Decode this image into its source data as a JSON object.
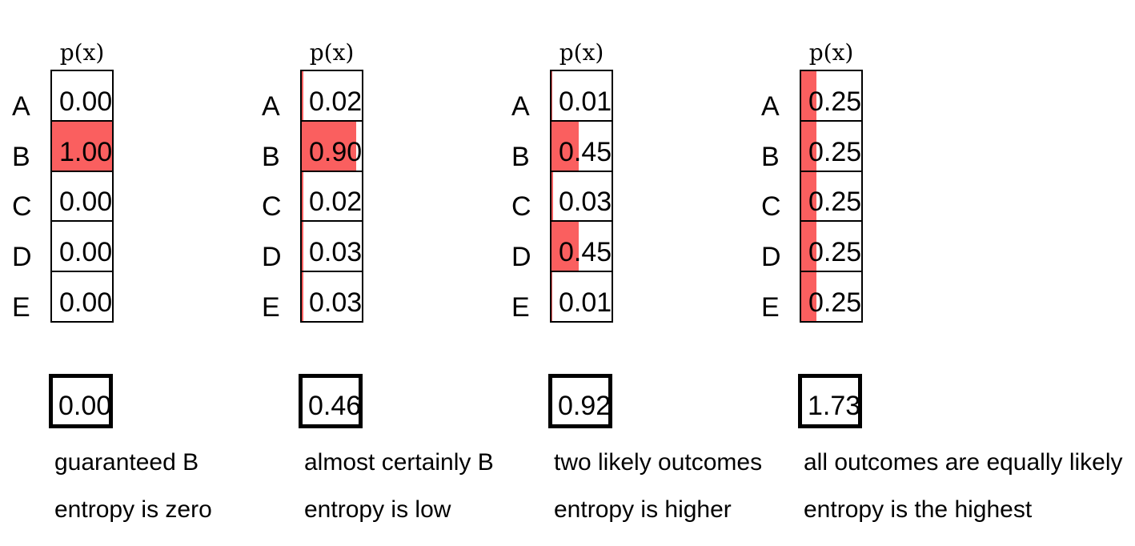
{
  "figure": {
    "header_label": "p(x)",
    "categories": [
      "A",
      "B",
      "C",
      "D",
      "E"
    ],
    "bar_color": "#fa5f5f",
    "border_color": "#000000",
    "distributions": [
      {
        "probs": [
          0.0,
          1.0,
          0.0,
          0.0,
          0.0
        ],
        "prob_labels": [
          "0.00",
          "1.00",
          "0.00",
          "0.00",
          "0.00"
        ],
        "entropy": "0.00",
        "caption_line1": "guaranteed B",
        "caption_line2": "entropy is zero"
      },
      {
        "probs": [
          0.02,
          0.9,
          0.02,
          0.03,
          0.03
        ],
        "prob_labels": [
          "0.02",
          "0.90",
          "0.02",
          "0.03",
          "0.03"
        ],
        "entropy": "0.46",
        "caption_line1": "almost certainly B",
        "caption_line2": "entropy is low"
      },
      {
        "probs": [
          0.01,
          0.45,
          0.03,
          0.45,
          0.01
        ],
        "prob_labels": [
          "0.01",
          "0.45",
          "0.03",
          "0.45",
          "0.01"
        ],
        "entropy": "0.92",
        "caption_line1": "two likely outcomes",
        "caption_line2": "entropy is higher"
      },
      {
        "probs": [
          0.25,
          0.25,
          0.25,
          0.25,
          0.25
        ],
        "prob_labels": [
          "0.25",
          "0.25",
          "0.25",
          "0.25",
          "0.25"
        ],
        "entropy": "1.73",
        "caption_line1": "all outcomes are equally likely",
        "caption_line2": "entropy is the highest"
      }
    ]
  },
  "chart_data": [
    {
      "type": "bar",
      "orientation": "horizontal",
      "title": "p(x)",
      "categories": [
        "A",
        "B",
        "C",
        "D",
        "E"
      ],
      "values": [
        0.0,
        1.0,
        0.0,
        0.0,
        0.0
      ],
      "xlim": [
        0,
        1
      ],
      "entropy": 0.0,
      "annotations": [
        "guaranteed B",
        "entropy is zero"
      ]
    },
    {
      "type": "bar",
      "orientation": "horizontal",
      "title": "p(x)",
      "categories": [
        "A",
        "B",
        "C",
        "D",
        "E"
      ],
      "values": [
        0.02,
        0.9,
        0.02,
        0.03,
        0.03
      ],
      "xlim": [
        0,
        1
      ],
      "entropy": 0.46,
      "annotations": [
        "almost certainly B",
        "entropy is low"
      ]
    },
    {
      "type": "bar",
      "orientation": "horizontal",
      "title": "p(x)",
      "categories": [
        "A",
        "B",
        "C",
        "D",
        "E"
      ],
      "values": [
        0.01,
        0.45,
        0.03,
        0.45,
        0.01
      ],
      "xlim": [
        0,
        1
      ],
      "entropy": 0.92,
      "annotations": [
        "two likely outcomes",
        "entropy is higher"
      ]
    },
    {
      "type": "bar",
      "orientation": "horizontal",
      "title": "p(x)",
      "categories": [
        "A",
        "B",
        "C",
        "D",
        "E"
      ],
      "values": [
        0.25,
        0.25,
        0.25,
        0.25,
        0.25
      ],
      "xlim": [
        0,
        1
      ],
      "entropy": 1.73,
      "annotations": [
        "all outcomes are equally likely",
        "entropy is the highest"
      ]
    }
  ]
}
